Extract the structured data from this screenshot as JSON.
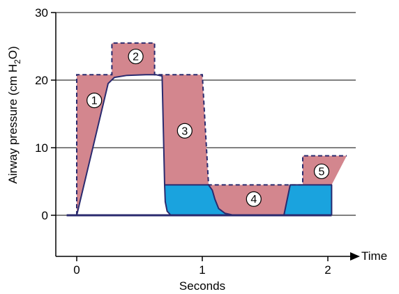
{
  "chart_data": {
    "type": "area",
    "xlabel": "Seconds",
    "x_arrow_label": "Time",
    "ylabel": "Airway pressure (cm H",
    "ylabel_subscript": "2",
    "ylabel_suffix": "O)",
    "xlim": [
      -0.18,
      2.3
    ],
    "ylim": [
      -6,
      30
    ],
    "x_ticks": [
      0,
      1,
      2
    ],
    "x_tick_labels": [
      "0",
      "1",
      "2"
    ],
    "y_ticks": [
      0,
      10,
      20,
      30
    ],
    "y_tick_labels": [
      "0",
      "10",
      "20",
      "30"
    ],
    "grid": "horizontal at y ticks",
    "colors": {
      "pink_region": "#d3868e",
      "blue_region": "#1aa3de",
      "outline": "#2a2a6e",
      "marker_fill": "#ffffff"
    },
    "series": [
      {
        "name": "",
        "style": "solid",
        "points": [
          [
            -0.08,
            0
          ],
          [
            0,
            0
          ],
          [
            0.25,
            19.5
          ],
          [
            0.3,
            20.4
          ],
          [
            0.4,
            20.7
          ],
          [
            0.55,
            20.8
          ],
          [
            0.63,
            20.8
          ],
          [
            0.68,
            20.6
          ],
          [
            0.7,
            4.5
          ],
          [
            1.05,
            4.5
          ],
          [
            1.08,
            3.7
          ],
          [
            1.1,
            2.4
          ],
          [
            1.13,
            1.0
          ],
          [
            1.18,
            0.3
          ],
          [
            1.25,
            0
          ],
          [
            1.65,
            0
          ],
          [
            1.7,
            4.5
          ],
          [
            2.03,
            4.5
          ],
          [
            2.03,
            0
          ]
        ]
      },
      {
        "name": "",
        "style": "dashed",
        "points": [
          [
            0,
            0
          ],
          [
            0,
            20.8
          ],
          [
            0.28,
            20.8
          ],
          [
            0.28,
            25.5
          ],
          [
            0.62,
            25.5
          ],
          [
            0.62,
            20.8
          ],
          [
            1.0,
            20.8
          ],
          [
            1.05,
            4.5
          ],
          [
            1.65,
            4.5
          ],
          [
            1.8,
            4.5
          ],
          [
            1.8,
            8.8
          ],
          [
            2.15,
            8.8
          ]
        ]
      }
    ],
    "regions": [
      {
        "label": "1",
        "color": "pink",
        "label_pos": [
          0.14,
          17.0
        ]
      },
      {
        "label": "2",
        "color": "pink",
        "label_pos": [
          0.47,
          23.5
        ]
      },
      {
        "label": "3",
        "color": "pink",
        "label_pos": [
          0.86,
          12.5
        ]
      },
      {
        "label": "4",
        "color": "pink",
        "label_pos": [
          1.41,
          2.4
        ]
      },
      {
        "label": "5",
        "color": "pink",
        "label_pos": [
          1.95,
          6.5
        ]
      },
      {
        "label": "",
        "color": "blue",
        "label_pos": null
      }
    ],
    "markers": [
      "1",
      "2",
      "3",
      "4",
      "5"
    ]
  }
}
